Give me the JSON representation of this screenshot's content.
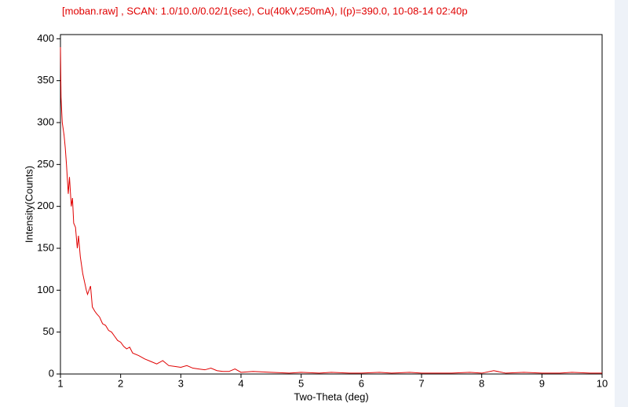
{
  "chart_data": {
    "type": "line",
    "title": "[moban.raw] , SCAN: 1.0/10.0/0.02/1(sec), Cu(40kV,250mA), I(p)=390.0, 10-08-14 02:40p",
    "x_label": "Two-Theta (deg)",
    "y_label": "Intensity(Counts)",
    "xlim": [
      1,
      10
    ],
    "ylim": [
      0,
      405
    ],
    "xticks": [
      1,
      2,
      3,
      4,
      5,
      6,
      7,
      8,
      9,
      10
    ],
    "yticks": [
      0,
      50,
      100,
      150,
      200,
      250,
      300,
      350,
      400
    ],
    "x": [
      1.0,
      1.01,
      1.03,
      1.06,
      1.08,
      1.1,
      1.13,
      1.15,
      1.18,
      1.2,
      1.22,
      1.25,
      1.28,
      1.3,
      1.33,
      1.37,
      1.4,
      1.43,
      1.45,
      1.5,
      1.53,
      1.57,
      1.6,
      1.65,
      1.7,
      1.75,
      1.8,
      1.85,
      1.9,
      1.95,
      2.0,
      2.05,
      2.1,
      2.15,
      2.2,
      2.3,
      2.4,
      2.5,
      2.6,
      2.7,
      2.8,
      2.9,
      3.0,
      3.1,
      3.2,
      3.3,
      3.4,
      3.5,
      3.6,
      3.7,
      3.8,
      3.9,
      4.0,
      4.2,
      4.5,
      4.8,
      5.0,
      5.3,
      5.5,
      5.8,
      6.0,
      6.3,
      6.5,
      6.8,
      7.0,
      7.3,
      7.5,
      7.8,
      8.0,
      8.2,
      8.4,
      8.7,
      9.0,
      9.3,
      9.5,
      9.8,
      10.0
    ],
    "series": [
      {
        "name": "moban.raw",
        "color": "#e00000",
        "values": [
          390,
          330,
          300,
          285,
          270,
          250,
          215,
          235,
          200,
          210,
          180,
          175,
          150,
          165,
          140,
          120,
          110,
          100,
          95,
          105,
          80,
          75,
          72,
          68,
          60,
          58,
          52,
          50,
          45,
          40,
          38,
          33,
          30,
          32,
          25,
          22,
          18,
          15,
          12,
          16,
          10,
          9,
          8,
          10,
          7,
          6,
          5,
          7,
          4,
          3,
          3,
          6,
          2,
          3,
          2,
          1,
          2,
          1,
          2,
          1,
          1,
          2,
          1,
          2,
          1,
          1,
          1,
          2,
          1,
          4,
          1,
          2,
          1,
          1,
          2,
          1,
          1
        ]
      }
    ]
  }
}
